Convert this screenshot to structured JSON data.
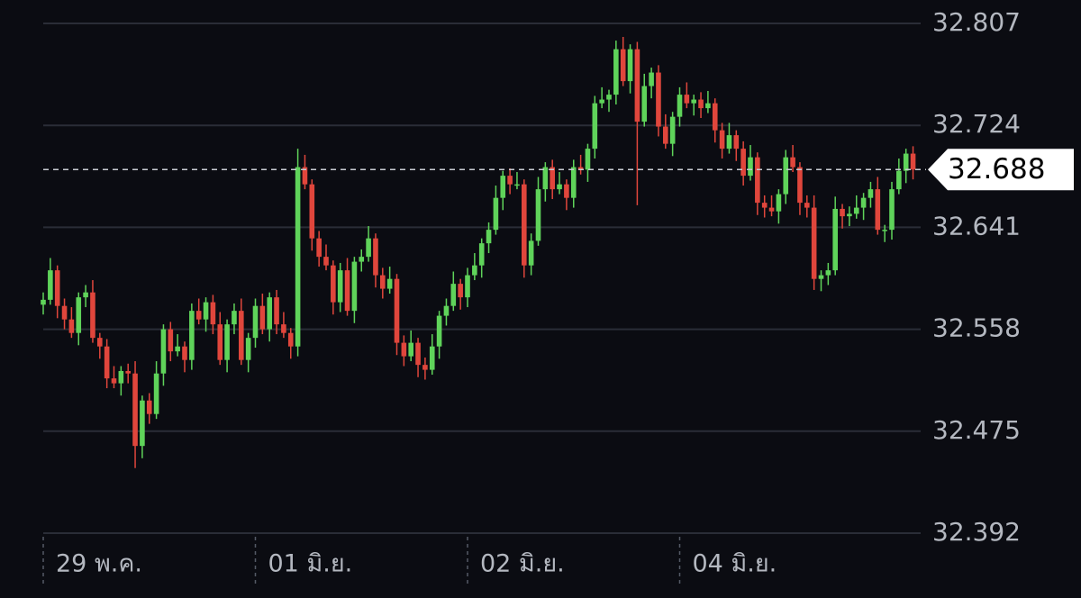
{
  "chart_data": {
    "type": "candlestick",
    "ylim": [
      32.392,
      32.807
    ],
    "yticks": [
      32.392,
      32.475,
      32.558,
      32.641,
      32.724,
      32.807
    ],
    "grid": true,
    "up_color": "#5fd35a",
    "down_color": "#e0463c",
    "last_price": 32.688,
    "categories": [
      "29 พ.ค.",
      null,
      null,
      null,
      null,
      null,
      null,
      null,
      null,
      null,
      null,
      null,
      null,
      null,
      null,
      null,
      null,
      null,
      null,
      null,
      null,
      null,
      null,
      null,
      null,
      null,
      null,
      null,
      null,
      null,
      "01 มิ.ย.",
      null,
      null,
      null,
      null,
      null,
      null,
      null,
      null,
      null,
      null,
      null,
      null,
      null,
      null,
      null,
      null,
      null,
      null,
      null,
      null,
      null,
      null,
      null,
      null,
      null,
      null,
      null,
      null,
      null,
      "02 มิ.ย.",
      null,
      null,
      null,
      null,
      null,
      null,
      null,
      null,
      null,
      null,
      null,
      null,
      null,
      null,
      null,
      null,
      null,
      null,
      null,
      null,
      null,
      null,
      null,
      null,
      null,
      null,
      null,
      null,
      null,
      "04 มิ.ย.",
      null,
      null,
      null,
      null,
      null,
      null,
      null,
      null,
      null,
      null,
      null,
      null,
      null,
      null,
      null,
      null,
      null,
      null,
      null,
      null,
      null,
      null,
      null,
      null,
      null,
      null,
      null,
      null,
      null,
      null,
      null,
      null,
      null
    ],
    "open": [
      32.578,
      32.582,
      32.606,
      32.577,
      32.566,
      32.555,
      32.584,
      32.588,
      32.551,
      32.544,
      32.518,
      32.514,
      32.524,
      32.522,
      32.463,
      32.5,
      32.489,
      32.522,
      32.558,
      32.54,
      32.544,
      32.533,
      32.573,
      32.566,
      32.58,
      32.562,
      32.533,
      32.562,
      32.573,
      32.533,
      32.551,
      32.577,
      32.558,
      32.584,
      32.562,
      32.555,
      32.544,
      32.69,
      32.676,
      32.632,
      32.617,
      32.61,
      32.58,
      32.606,
      32.573,
      32.613,
      32.617,
      32.632,
      32.602,
      32.591,
      32.599,
      32.547,
      32.536,
      32.547,
      32.529,
      32.525,
      32.544,
      32.569,
      32.577,
      32.595,
      32.584,
      32.602,
      32.61,
      32.628,
      32.639,
      32.665,
      32.683,
      32.676,
      32.676,
      32.61,
      32.63,
      32.672,
      32.69,
      32.672,
      32.676,
      32.665,
      32.69,
      32.688,
      32.705,
      32.742,
      32.745,
      32.749,
      32.786,
      32.76,
      32.786,
      32.727,
      32.756,
      32.767,
      32.723,
      32.709,
      32.731,
      32.749,
      32.742,
      32.745,
      32.738,
      32.742,
      32.72,
      32.705,
      32.716,
      32.705,
      32.683,
      32.698,
      32.661,
      32.657,
      32.654,
      32.668,
      32.698,
      32.69,
      32.661,
      32.657,
      32.599,
      32.602,
      32.606,
      32.656,
      32.65,
      32.652,
      32.657,
      32.665,
      32.672,
      32.639,
      32.639,
      32.672,
      32.687,
      32.701
    ],
    "high": [
      32.588,
      32.616,
      32.61,
      32.583,
      32.576,
      32.588,
      32.594,
      32.598,
      32.555,
      32.55,
      32.528,
      32.528,
      32.53,
      32.532,
      32.504,
      32.506,
      32.532,
      32.562,
      32.564,
      32.554,
      32.548,
      32.579,
      32.583,
      32.584,
      32.586,
      32.572,
      32.566,
      32.579,
      32.583,
      32.555,
      32.583,
      32.587,
      32.588,
      32.59,
      32.572,
      32.559,
      32.705,
      32.7,
      32.68,
      32.638,
      32.627,
      32.614,
      32.612,
      32.616,
      32.617,
      32.623,
      32.642,
      32.636,
      32.608,
      32.609,
      32.603,
      32.553,
      32.557,
      32.551,
      32.535,
      32.554,
      32.573,
      32.583,
      32.605,
      32.599,
      32.608,
      32.62,
      32.632,
      32.645,
      32.675,
      32.687,
      32.689,
      32.686,
      32.68,
      32.636,
      32.682,
      32.694,
      32.696,
      32.686,
      32.68,
      32.696,
      32.7,
      32.709,
      32.748,
      32.755,
      32.753,
      32.793,
      32.796,
      32.79,
      32.792,
      32.766,
      32.771,
      32.773,
      32.733,
      32.735,
      32.755,
      32.759,
      32.749,
      32.751,
      32.752,
      32.746,
      32.726,
      32.726,
      32.72,
      32.711,
      32.708,
      32.702,
      32.667,
      32.667,
      32.672,
      32.704,
      32.708,
      32.694,
      32.667,
      32.667,
      32.606,
      32.612,
      32.666,
      32.66,
      32.658,
      32.667,
      32.669,
      32.678,
      32.682,
      32.643,
      32.678,
      32.697,
      32.705,
      32.707
    ],
    "low": [
      32.57,
      32.578,
      32.567,
      32.558,
      32.551,
      32.545,
      32.576,
      32.547,
      32.534,
      32.51,
      32.51,
      32.504,
      32.514,
      32.445,
      32.453,
      32.481,
      32.485,
      32.512,
      32.532,
      32.536,
      32.523,
      32.525,
      32.562,
      32.556,
      32.554,
      32.529,
      32.523,
      32.554,
      32.529,
      32.523,
      32.543,
      32.554,
      32.548,
      32.554,
      32.551,
      32.534,
      32.536,
      32.672,
      32.622,
      32.609,
      32.606,
      32.57,
      32.572,
      32.569,
      32.563,
      32.605,
      32.613,
      32.592,
      32.583,
      32.587,
      32.537,
      32.528,
      32.532,
      32.519,
      32.517,
      32.521,
      32.534,
      32.561,
      32.573,
      32.574,
      32.576,
      32.598,
      32.6,
      32.62,
      32.635,
      32.655,
      32.668,
      32.672,
      32.6,
      32.602,
      32.626,
      32.662,
      32.664,
      32.668,
      32.655,
      32.657,
      32.684,
      32.678,
      32.697,
      32.738,
      32.735,
      32.741,
      32.756,
      32.75,
      32.659,
      32.723,
      32.746,
      32.715,
      32.705,
      32.699,
      32.723,
      32.738,
      32.732,
      32.73,
      32.734,
      32.71,
      32.697,
      32.701,
      32.695,
      32.675,
      32.679,
      32.651,
      32.649,
      32.65,
      32.644,
      32.66,
      32.686,
      32.651,
      32.649,
      32.59,
      32.589,
      32.594,
      32.602,
      32.64,
      32.642,
      32.648,
      32.647,
      32.657,
      32.635,
      32.629,
      32.631,
      32.668,
      32.677,
      32.68
    ],
    "close": [
      32.582,
      32.606,
      32.577,
      32.566,
      32.555,
      32.584,
      32.588,
      32.551,
      32.544,
      32.518,
      32.514,
      32.524,
      32.522,
      32.463,
      32.5,
      32.489,
      32.522,
      32.558,
      32.54,
      32.544,
      32.533,
      32.573,
      32.566,
      32.58,
      32.562,
      32.533,
      32.562,
      32.573,
      32.533,
      32.551,
      32.577,
      32.558,
      32.584,
      32.562,
      32.555,
      32.544,
      32.69,
      32.676,
      32.632,
      32.617,
      32.61,
      32.58,
      32.606,
      32.573,
      32.613,
      32.617,
      32.632,
      32.602,
      32.591,
      32.599,
      32.547,
      32.536,
      32.547,
      32.529,
      32.525,
      32.544,
      32.569,
      32.577,
      32.595,
      32.584,
      32.602,
      32.61,
      32.628,
      32.639,
      32.665,
      32.683,
      32.676,
      32.676,
      32.61,
      32.63,
      32.672,
      32.69,
      32.672,
      32.676,
      32.665,
      32.69,
      32.688,
      32.705,
      32.742,
      32.745,
      32.749,
      32.786,
      32.76,
      32.786,
      32.727,
      32.756,
      32.767,
      32.723,
      32.709,
      32.731,
      32.749,
      32.742,
      32.745,
      32.738,
      32.742,
      32.72,
      32.705,
      32.716,
      32.705,
      32.683,
      32.698,
      32.661,
      32.657,
      32.654,
      32.668,
      32.698,
      32.69,
      32.661,
      32.657,
      32.599,
      32.602,
      32.606,
      32.656,
      32.65,
      32.652,
      32.657,
      32.665,
      32.672,
      32.639,
      32.639,
      32.672,
      32.687,
      32.701,
      32.688
    ]
  }
}
